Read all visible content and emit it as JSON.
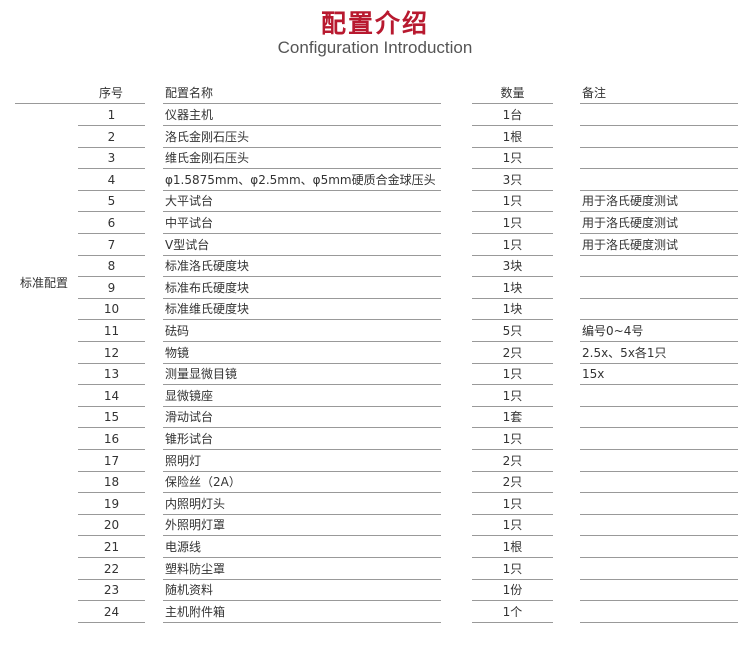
{
  "title": "配置介绍",
  "subtitle": "Configuration Introduction",
  "headers": {
    "no": "序号",
    "name": "配置名称",
    "qty": "数量",
    "remark": "备注"
  },
  "group_label": "标准配置",
  "rows": [
    [
      "1",
      "仪器主机",
      "1台",
      ""
    ],
    [
      "2",
      "洛氏金刚石压头",
      "1根",
      ""
    ],
    [
      "3",
      "维氏金刚石压头",
      "1只",
      ""
    ],
    [
      "4",
      "φ1.5875mm、φ2.5mm、φ5mm硬质合金球压头",
      "3只",
      ""
    ],
    [
      "5",
      "大平试台",
      "1只",
      "用于洛氏硬度测试"
    ],
    [
      "6",
      "中平试台",
      "1只",
      "用于洛氏硬度测试"
    ],
    [
      "7",
      "V型试台",
      "1只",
      "用于洛氏硬度测试"
    ],
    [
      "8",
      "标准洛氏硬度块",
      "3块",
      ""
    ],
    [
      "9",
      "标准布氏硬度块",
      "1块",
      ""
    ],
    [
      "10",
      "标准维氏硬度块",
      "1块",
      ""
    ],
    [
      "11",
      "砝码",
      "5只",
      "编号0~4号"
    ],
    [
      "12",
      "物镜",
      "2只",
      "2.5x、5x各1只"
    ],
    [
      "13",
      "测量显微目镜",
      "1只",
      "15x"
    ],
    [
      "14",
      "显微镜座",
      "1只",
      ""
    ],
    [
      "15",
      "滑动试台",
      "1套",
      ""
    ],
    [
      "16",
      "锥形试台",
      "1只",
      ""
    ],
    [
      "17",
      "照明灯",
      "2只",
      ""
    ],
    [
      "18",
      "保险丝（2A）",
      "2只",
      ""
    ],
    [
      "19",
      "内照明灯头",
      "1只",
      ""
    ],
    [
      "20",
      "外照明灯罩",
      "1只",
      ""
    ],
    [
      "21",
      "电源线",
      "1根",
      ""
    ],
    [
      "22",
      "塑料防尘罩",
      "1只",
      ""
    ],
    [
      "23",
      "随机资料",
      "1份",
      ""
    ],
    [
      "24",
      "主机附件箱",
      "1个",
      ""
    ]
  ]
}
